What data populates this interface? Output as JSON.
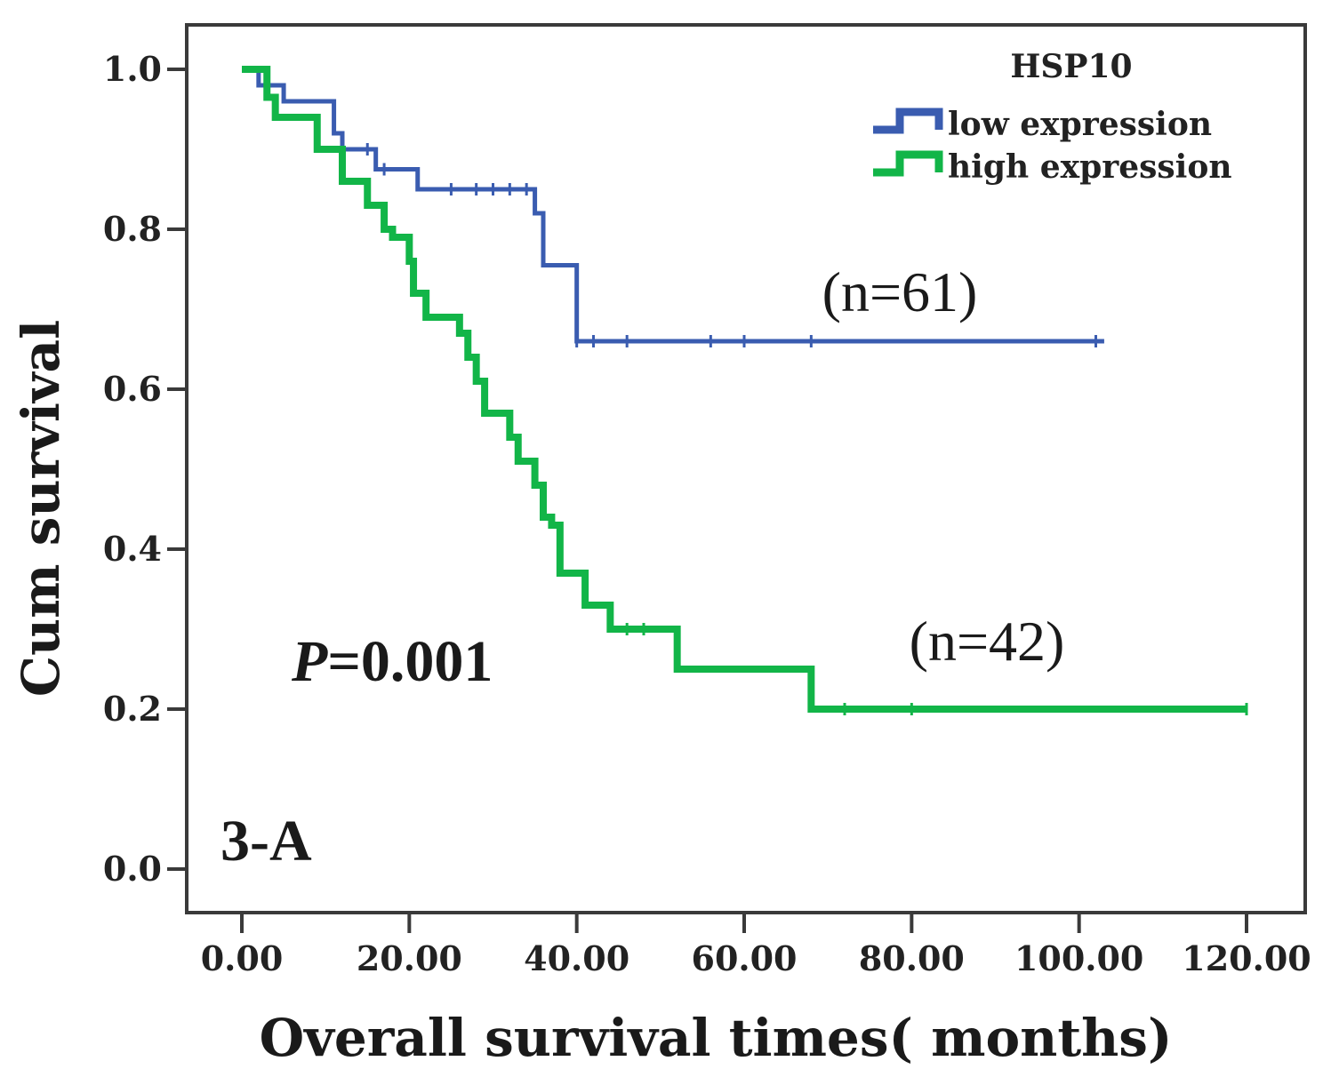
{
  "chart_data": {
    "type": "line",
    "xlabel": "Overall  survival times( months)",
    "ylabel": "Cum survival",
    "xlim": [
      0,
      120
    ],
    "ylim": [
      0,
      1
    ],
    "x_ticks": [
      "0.00",
      "20.00",
      "40.00",
      "60.00",
      "80.00",
      "100.00",
      "120.00"
    ],
    "x_tick_values": [
      0,
      20,
      40,
      60,
      80,
      100,
      120
    ],
    "y_ticks": [
      "0.0",
      "0.2",
      "0.4",
      "0.6",
      "0.8",
      "1.0"
    ],
    "y_tick_values": [
      0,
      0.2,
      0.4,
      0.6,
      0.8,
      1.0
    ],
    "grid": false,
    "legend": {
      "title": "HSP10",
      "placement": "top-right"
    },
    "series": [
      {
        "name": "low expression",
        "color": "#3a5cb0",
        "n_label": "(n=61)",
        "steps": [
          [
            0,
            1.0
          ],
          [
            2,
            0.98
          ],
          [
            5,
            0.96
          ],
          [
            11,
            0.92
          ],
          [
            12,
            0.9
          ],
          [
            16,
            0.875
          ],
          [
            21,
            0.85
          ],
          [
            35,
            0.82
          ],
          [
            36,
            0.755
          ],
          [
            40,
            0.66
          ],
          [
            103,
            0.66
          ]
        ],
        "censor_x": [
          15,
          17,
          25,
          28,
          30,
          32,
          34,
          40,
          42,
          46,
          56,
          60,
          68,
          102
        ]
      },
      {
        "name": "high expression",
        "color": "#12b548",
        "n_label": "(n=42)",
        "steps": [
          [
            0,
            1.0
          ],
          [
            3,
            0.965
          ],
          [
            4,
            0.94
          ],
          [
            9,
            0.9
          ],
          [
            12,
            0.86
          ],
          [
            15,
            0.83
          ],
          [
            17,
            0.8
          ],
          [
            18,
            0.79
          ],
          [
            20,
            0.76
          ],
          [
            20.5,
            0.72
          ],
          [
            22,
            0.69
          ],
          [
            26,
            0.67
          ],
          [
            27,
            0.64
          ],
          [
            28,
            0.61
          ],
          [
            29,
            0.57
          ],
          [
            32,
            0.54
          ],
          [
            33,
            0.51
          ],
          [
            35,
            0.48
          ],
          [
            36,
            0.44
          ],
          [
            37,
            0.43
          ],
          [
            38,
            0.37
          ],
          [
            41,
            0.33
          ],
          [
            44,
            0.3
          ],
          [
            52,
            0.25
          ],
          [
            68,
            0.2
          ],
          [
            120,
            0.2
          ]
        ],
        "censor_x": [
          46,
          48,
          72,
          80,
          120
        ]
      }
    ],
    "annotations": {
      "p_letter": "P",
      "p_value": "=0.001",
      "panel_label": "3-A"
    }
  }
}
